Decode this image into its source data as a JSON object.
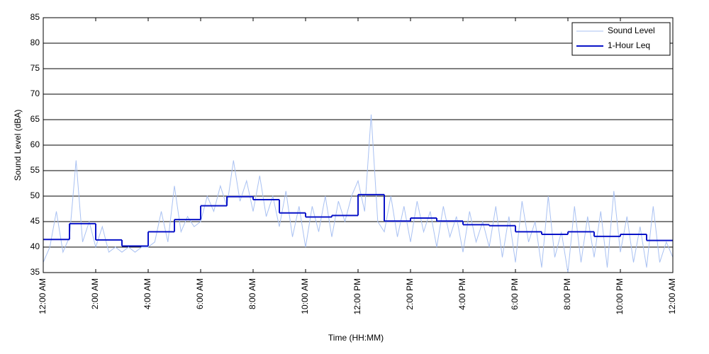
{
  "chart_data": {
    "type": "line",
    "xlabel": "Time (HH:MM)",
    "ylabel": "Sound Level (dBA)",
    "xlim": [
      0,
      24
    ],
    "xticks": [
      {
        "value": 0,
        "label": "12:00 AM"
      },
      {
        "value": 2,
        "label": "2:00 AM"
      },
      {
        "value": 4,
        "label": "4:00 AM"
      },
      {
        "value": 6,
        "label": "6:00 AM"
      },
      {
        "value": 8,
        "label": "8:00 AM"
      },
      {
        "value": 10,
        "label": "10:00 AM"
      },
      {
        "value": 12,
        "label": "12:00 PM"
      },
      {
        "value": 14,
        "label": "2:00 PM"
      },
      {
        "value": 16,
        "label": "4:00 PM"
      },
      {
        "value": 18,
        "label": "6:00 PM"
      },
      {
        "value": 20,
        "label": "8:00 PM"
      },
      {
        "value": 22,
        "label": "10:00 PM"
      },
      {
        "value": 24,
        "label": "12:00 AM"
      }
    ],
    "ylim": [
      35,
      85
    ],
    "yticks": [
      35,
      40,
      45,
      50,
      55,
      60,
      65,
      70,
      75,
      80,
      85
    ],
    "grid": true,
    "legend": "upper right",
    "series": [
      {
        "name": "Sound Level",
        "color": "#a9c1f2",
        "style": "line",
        "x": [
          0,
          0.25,
          0.5,
          0.75,
          1,
          1.25,
          1.5,
          1.75,
          2,
          2.25,
          2.5,
          2.75,
          3,
          3.25,
          3.5,
          3.75,
          4,
          4.25,
          4.5,
          4.75,
          5,
          5.25,
          5.5,
          5.75,
          6,
          6.25,
          6.5,
          6.75,
          7,
          7.25,
          7.5,
          7.75,
          8,
          8.25,
          8.5,
          8.75,
          9,
          9.25,
          9.5,
          9.75,
          10,
          10.25,
          10.5,
          10.75,
          11,
          11.25,
          11.5,
          11.75,
          12,
          12.25,
          12.5,
          12.75,
          13,
          13.25,
          13.5,
          13.75,
          14,
          14.25,
          14.5,
          14.75,
          15,
          15.25,
          15.5,
          15.75,
          16,
          16.25,
          16.5,
          16.75,
          17,
          17.25,
          17.5,
          17.75,
          18,
          18.25,
          18.5,
          18.75,
          19,
          19.25,
          19.5,
          19.75,
          20,
          20.25,
          20.5,
          20.75,
          21,
          21.25,
          21.5,
          21.75,
          22,
          22.25,
          22.5,
          22.75,
          23,
          23.25,
          23.5,
          23.75,
          24
        ],
        "values": [
          37,
          40,
          47,
          39,
          42,
          57,
          41,
          45,
          40,
          44,
          39,
          40,
          39,
          40,
          39,
          40,
          40,
          41,
          47,
          41,
          52,
          43,
          46,
          44,
          45,
          50,
          47,
          52,
          48,
          57,
          49,
          53,
          47,
          54,
          46,
          50,
          44,
          51,
          42,
          48,
          40,
          48,
          43,
          50,
          42,
          49,
          45,
          50,
          53,
          47,
          66,
          45,
          43,
          50,
          42,
          48,
          41,
          49,
          43,
          47,
          40,
          48,
          42,
          46,
          39,
          47,
          41,
          45,
          40,
          48,
          38,
          46,
          37,
          49,
          41,
          45,
          36,
          50,
          38,
          43,
          35,
          48,
          37,
          46,
          38,
          47,
          36,
          51,
          39,
          46,
          37,
          44,
          36,
          48,
          37,
          41,
          38
        ]
      },
      {
        "name": "1-Hour Leq",
        "color": "#0a14c8",
        "style": "step",
        "x": [
          0,
          1,
          2,
          3,
          4,
          5,
          6,
          7,
          8,
          9,
          10,
          11,
          12,
          13,
          14,
          15,
          16,
          17,
          18,
          19,
          20,
          21,
          22,
          23
        ],
        "values": [
          41.5,
          44.6,
          41.4,
          40.2,
          43.0,
          45.4,
          48.1,
          49.9,
          49.3,
          46.7,
          45.9,
          46.2,
          50.3,
          45.1,
          45.7,
          45.1,
          44.4,
          44.2,
          43.0,
          42.5,
          43.0,
          42.1,
          42.5,
          41.3
        ]
      }
    ]
  }
}
